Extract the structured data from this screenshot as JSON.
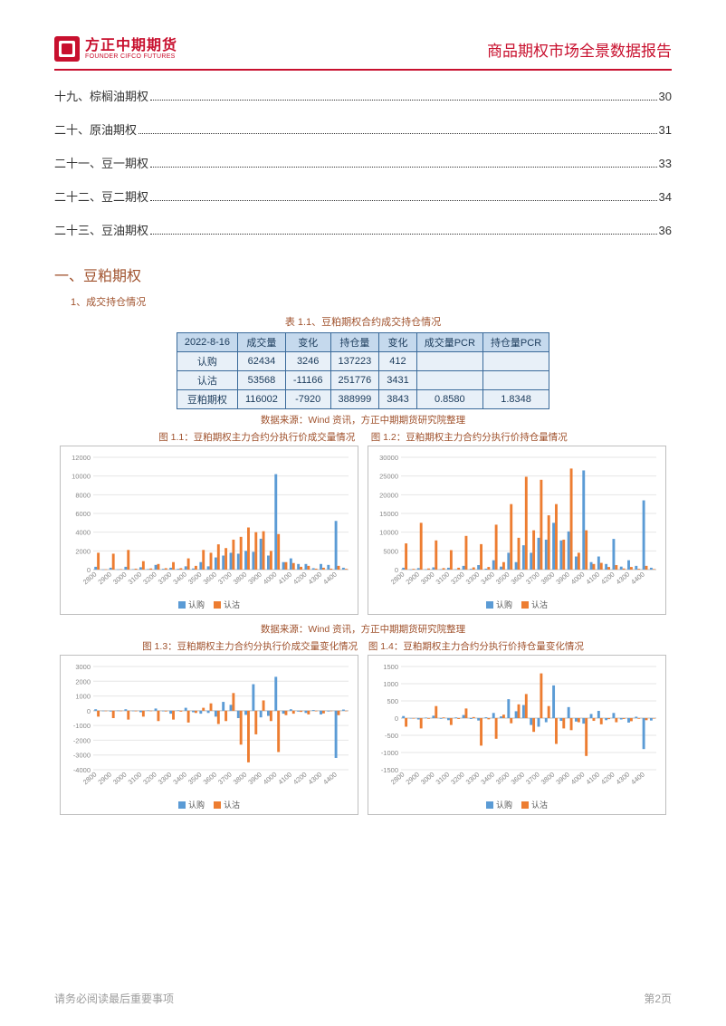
{
  "header": {
    "logo_cn": "方正中期期货",
    "logo_en": "FOUNDER CIFCO FUTURES",
    "report_title": "商品期权市场全景数据报告"
  },
  "toc": [
    {
      "label": "十九、棕榈油期权",
      "page": "30"
    },
    {
      "label": "二十、原油期权",
      "page": "31"
    },
    {
      "label": "二十一、豆一期权",
      "page": "33"
    },
    {
      "label": "二十二、豆二期权",
      "page": "34"
    },
    {
      "label": "二十三、豆油期权",
      "page": "36"
    }
  ],
  "section": {
    "heading": "一、豆粕期权",
    "subsection": "1、成交持仓情况",
    "table_caption": "表 1.1、豆粕期权合约成交持仓情况",
    "source": "数据来源：Wind 资讯，方正中期期货研究院整理",
    "fig11": "图 1.1：豆粕期权主力合约分执行价成交量情况",
    "fig12": "图 1.2：豆粕期权主力合约分执行价持仓量情况",
    "fig13": "图 1.3：豆粕期权主力合约分执行价成交量变化情况",
    "fig14": "图 1.4：豆粕期权主力合约分执行价持仓量变化情况"
  },
  "table": {
    "columns": [
      "2022-8-16",
      "成交量",
      "变化",
      "持仓量",
      "变化",
      "成交量PCR",
      "持仓量PCR"
    ],
    "rows": [
      [
        "认购",
        "62434",
        "3246",
        "137223",
        "412",
        "",
        ""
      ],
      [
        "认沽",
        "53568",
        "-11166",
        "251776",
        "3431",
        "",
        ""
      ],
      [
        "豆粕期权",
        "116002",
        "-7920",
        "388999",
        "3843",
        "0.8580",
        "1.8348"
      ]
    ],
    "header_bg": "#c5d9ed",
    "cell_bg": "#e8f0f8",
    "border_color": "#3a6a9a",
    "text_color": "#1a3a5a"
  },
  "legend": {
    "call": "认购",
    "put": "认沽"
  },
  "colors": {
    "call": "#5b9bd5",
    "put": "#ed7d31",
    "grid": "#e6e6e6",
    "axis": "#bfbfbf",
    "tick_text": "#888888",
    "brand": "#c8102e",
    "heading": "#a0522d"
  },
  "chart_common": {
    "strikes": [
      2800,
      2850,
      2900,
      2950,
      3000,
      3050,
      3100,
      3150,
      3200,
      3250,
      3300,
      3350,
      3400,
      3450,
      3500,
      3550,
      3600,
      3650,
      3700,
      3750,
      3800,
      3850,
      3900,
      3950,
      4000,
      4050,
      4100,
      4150,
      4200,
      4250,
      4300,
      4350,
      4400,
      4450
    ],
    "xtick_strikes": [
      2800,
      2900,
      3000,
      3100,
      3200,
      3300,
      3400,
      3500,
      3600,
      3700,
      3800,
      3900,
      4000,
      4100,
      4200,
      4300,
      4400
    ],
    "tick_fontsize": 7.5
  },
  "chart11": {
    "title": "fig11",
    "ylim": [
      0,
      12000
    ],
    "ytick_step": 2000,
    "call": [
      300,
      20,
      200,
      30,
      300,
      50,
      250,
      60,
      500,
      80,
      200,
      80,
      350,
      120,
      800,
      350,
      1300,
      1500,
      1800,
      1700,
      2000,
      1900,
      3300,
      1500,
      10200,
      800,
      1200,
      600,
      600,
      150,
      600,
      500,
      5200,
      200
    ],
    "put": [
      1800,
      30,
      1700,
      50,
      2100,
      100,
      900,
      120,
      600,
      150,
      800,
      150,
      1200,
      400,
      2100,
      1800,
      2700,
      2300,
      3200,
      3500,
      4500,
      4000,
      4100,
      2000,
      3800,
      800,
      700,
      300,
      400,
      100,
      200,
      100,
      400,
      80
    ]
  },
  "chart12": {
    "title": "fig12",
    "ylim": [
      0,
      30000
    ],
    "ytick_step": 5000,
    "call": [
      500,
      50,
      400,
      80,
      600,
      100,
      500,
      100,
      1000,
      200,
      1200,
      250,
      2500,
      800,
      4500,
      2000,
      6500,
      4500,
      8500,
      8000,
      12500,
      7800,
      10200,
      3500,
      26500,
      2000,
      3500,
      1500,
      8200,
      800,
      2500,
      1000,
      18500,
      500
    ],
    "put": [
      7000,
      200,
      12500,
      300,
      7800,
      400,
      5200,
      500,
      9000,
      600,
      6800,
      700,
      12000,
      2000,
      17500,
      8500,
      24800,
      10500,
      24000,
      14500,
      17500,
      8000,
      27000,
      4500,
      10500,
      1500,
      1800,
      700,
      1200,
      300,
      700,
      200,
      1000,
      150
    ]
  },
  "chart13": {
    "title": "fig13",
    "ylim": [
      -4000,
      3000
    ],
    "ytick_step": 1000,
    "call": [
      100,
      -20,
      -50,
      10,
      100,
      -30,
      -100,
      20,
      150,
      -40,
      -200,
      30,
      200,
      -100,
      -200,
      -150,
      -400,
      600,
      400,
      -500,
      -280,
      1800,
      -450,
      -350,
      2300,
      -200,
      100,
      -60,
      -150,
      50,
      -250,
      -50,
      -3200,
      80
    ],
    "put": [
      -400,
      -30,
      -500,
      -20,
      -600,
      -40,
      -400,
      -30,
      -700,
      -50,
      -600,
      -60,
      -800,
      -150,
      200,
      500,
      -900,
      -700,
      1200,
      -2300,
      -3500,
      -1600,
      700,
      -700,
      -2800,
      -300,
      -200,
      -80,
      -250,
      -40,
      -180,
      -30,
      -300,
      -20
    ]
  },
  "chart14": {
    "title": "fig14",
    "ylim": [
      -1500,
      1500
    ],
    "ytick_step": 500,
    "call": [
      60,
      -10,
      -40,
      15,
      70,
      -20,
      -60,
      20,
      90,
      -25,
      -70,
      25,
      150,
      50,
      550,
      200,
      380,
      -200,
      -250,
      -120,
      950,
      -80,
      320,
      -100,
      -160,
      120,
      210,
      -60,
      150,
      -40,
      -130,
      40,
      -900,
      -70
    ],
    "put": [
      -250,
      -15,
      -300,
      -20,
      350,
      20,
      -200,
      -25,
      280,
      30,
      -800,
      -35,
      -600,
      100,
      -150,
      400,
      700,
      -400,
      1300,
      350,
      -750,
      -300,
      -350,
      -120,
      -1100,
      -80,
      -180,
      -30,
      -120,
      -25,
      -90,
      -20,
      -60,
      -15
    ]
  },
  "footer": {
    "left": "请务必阅读最后重要事项",
    "right": "第2页"
  }
}
